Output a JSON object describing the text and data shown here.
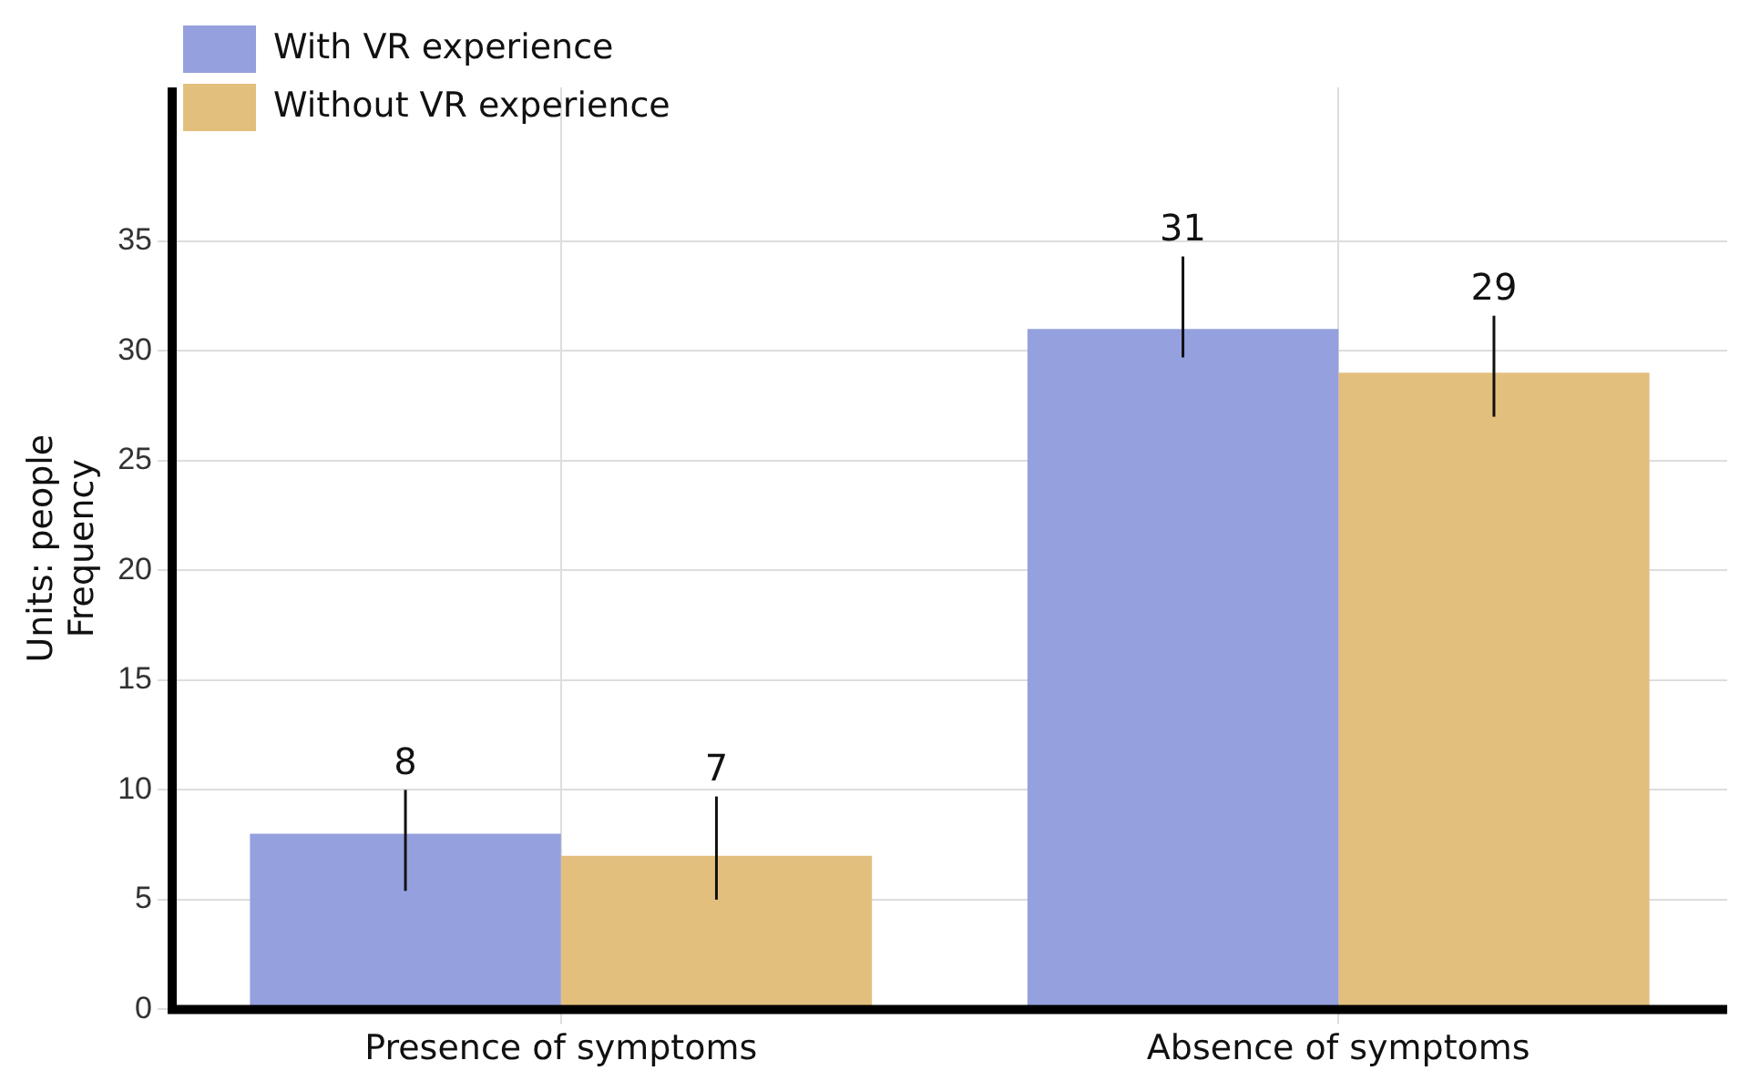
{
  "chart_data": {
    "type": "bar",
    "ylabel": "Units: people\nFrequency",
    "categories": [
      "Presence of symptoms",
      "Absence of symptoms"
    ],
    "series": [
      {
        "name": "With VR experience",
        "color": "#95a0de",
        "values": [
          8,
          31
        ],
        "errors": [
          [
            5.4,
            10
          ],
          [
            29.7,
            34.3
          ]
        ]
      },
      {
        "name": "Without VR experience",
        "color": "#e3bf7e",
        "values": [
          7,
          29
        ],
        "errors": [
          [
            5,
            9.7
          ],
          [
            27,
            31.6
          ]
        ]
      }
    ],
    "ylim": [
      0,
      42
    ],
    "yticks": [
      0,
      5,
      10,
      15,
      20,
      25,
      30,
      35
    ],
    "grid": true,
    "legend": "top left",
    "data_labels": true
  }
}
